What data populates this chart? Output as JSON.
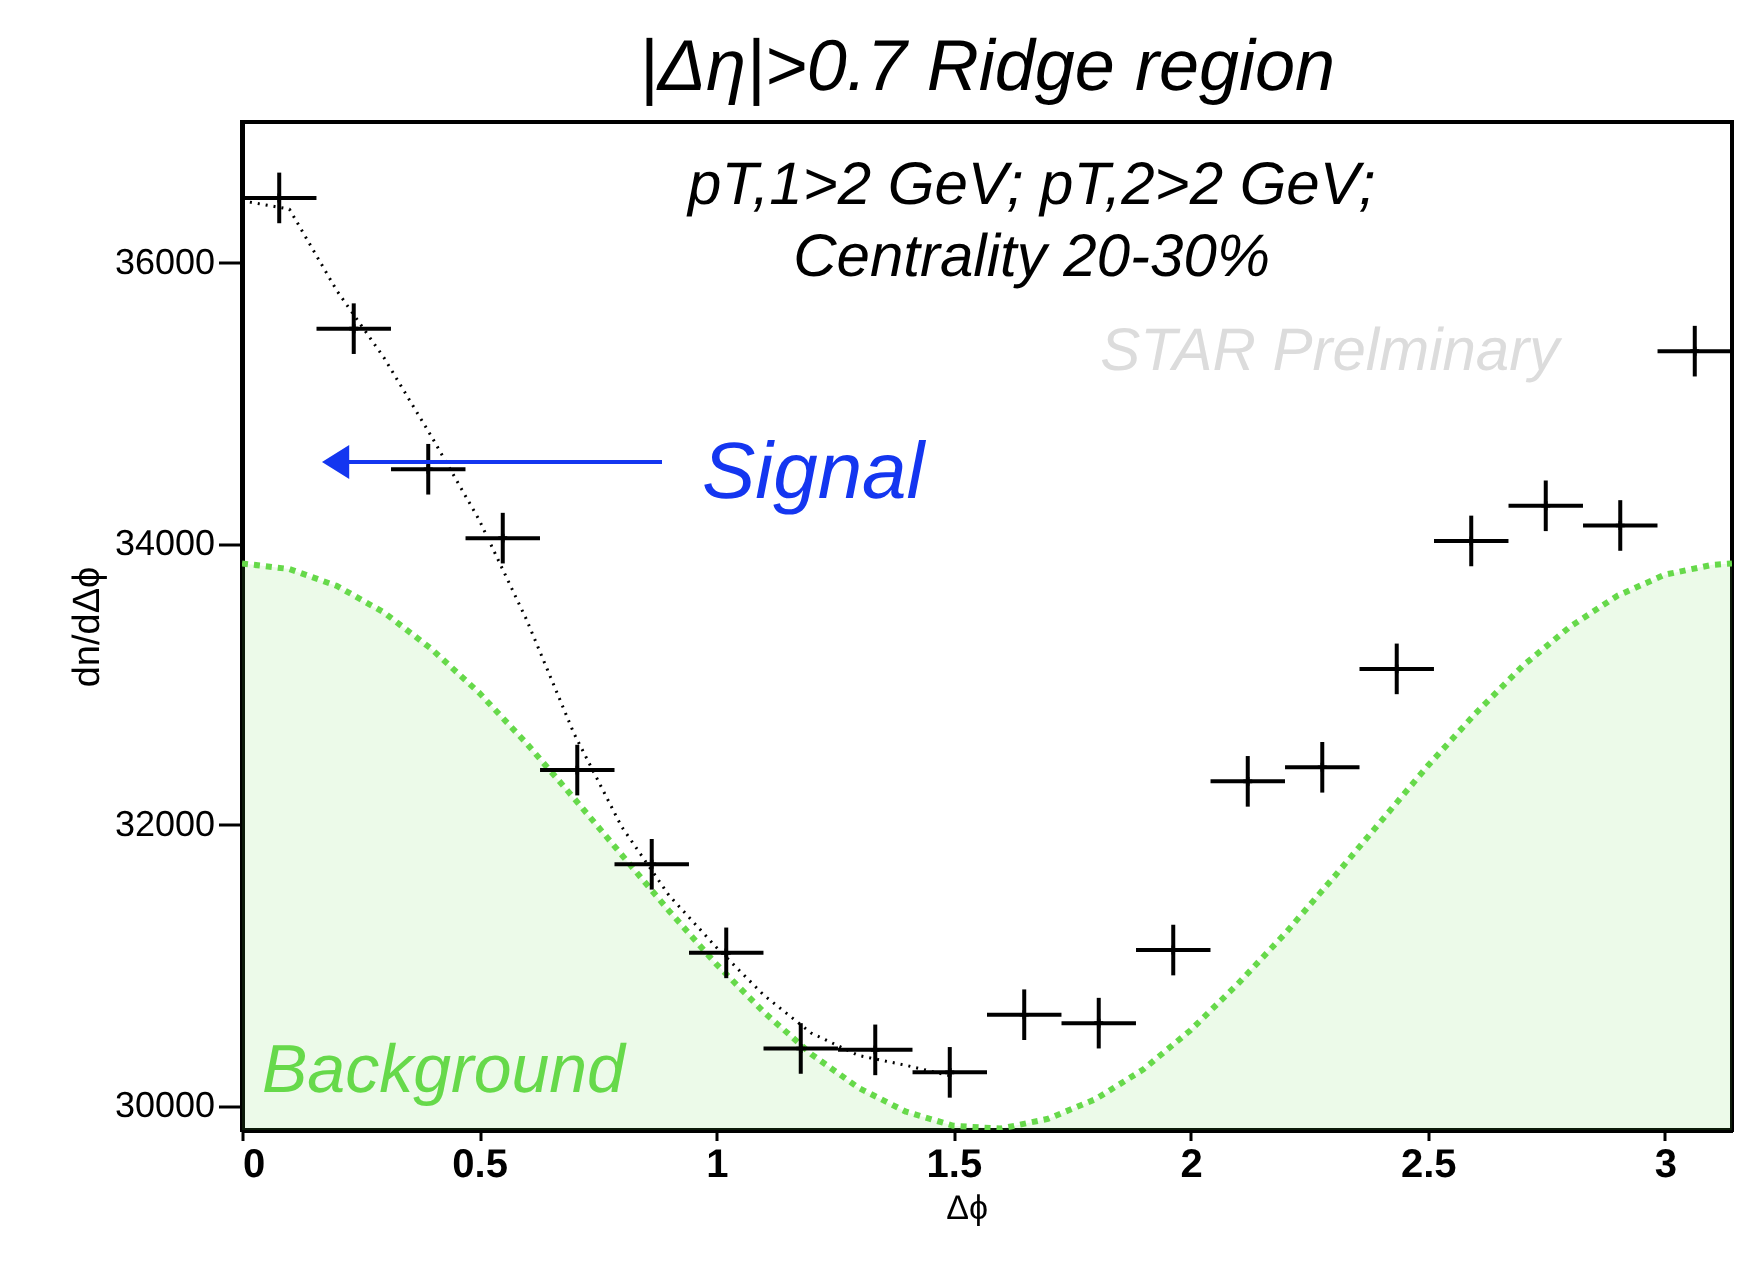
{
  "chart_data": {
    "type": "scatter",
    "title": "|Δη|>0.7 Ridge region",
    "xlabel": "Δϕ",
    "ylabel": "dn/dΔϕ",
    "xlim": [
      0,
      3.1416
    ],
    "xticks": [
      0,
      0.5,
      1,
      1.5,
      2,
      2.5,
      3
    ],
    "ylim": [
      29830,
      37000
    ],
    "yticks": [
      30000,
      32000,
      34000,
      36000
    ],
    "grid": false,
    "annotations": [
      "pT,1>2 GeV; pT,2>2 GeV;",
      "Centrality 20-30%",
      "STAR Prelminary",
      "Signal"
    ],
    "series": [
      {
        "type": "area",
        "name": "Background",
        "color": "#66d94a",
        "line_style": "dashed",
        "x": [
          0,
          0.1,
          0.2,
          0.3,
          0.4,
          0.5,
          0.6,
          0.7,
          0.8,
          0.9,
          1.0,
          1.1,
          1.2,
          1.3,
          1.4,
          1.5,
          1.6,
          1.7,
          1.8,
          1.9,
          2.0,
          2.1,
          2.2,
          2.3,
          2.4,
          2.5,
          2.6,
          2.7,
          2.8,
          2.9,
          3.0,
          3.1,
          3.1416
        ],
        "values": [
          33860,
          33820,
          33700,
          33510,
          33250,
          32940,
          32580,
          32190,
          31790,
          31390,
          31010,
          30670,
          30370,
          30130,
          29960,
          29860,
          29840,
          29910,
          30050,
          30260,
          30540,
          30870,
          31230,
          31620,
          32020,
          32420,
          32790,
          33130,
          33410,
          33630,
          33780,
          33850,
          33860
        ]
      },
      {
        "type": "line",
        "color": "#000000",
        "line_style": "dotted",
        "x": [
          0,
          0.1,
          0.2,
          0.3,
          0.4,
          0.5,
          0.6,
          0.7,
          0.8,
          0.9,
          1.0,
          1.1,
          1.2,
          1.3,
          1.4,
          1.5
        ],
        "values": [
          36440,
          36380,
          35800,
          35320,
          34760,
          34170,
          33460,
          32650,
          31990,
          31500,
          31130,
          30790,
          30520,
          30360,
          30290,
          30210
        ]
      },
      {
        "marker": "cross",
        "color": "#000000",
        "x": [
          0.0785,
          0.2356,
          0.3927,
          0.5498,
          0.7069,
          0.8639,
          1.021,
          1.1781,
          1.3352,
          1.4923,
          1.6493,
          1.8064,
          1.9635,
          2.1206,
          2.2777,
          2.4347,
          2.5918,
          2.7489,
          2.906,
          3.0631
        ],
        "values": [
          36460,
          35530,
          34530,
          34040,
          32390,
          31720,
          31090,
          30410,
          30400,
          30240,
          30650,
          30590,
          31110,
          32310,
          32410,
          33110,
          34020,
          34270,
          34130,
          35370
        ],
        "errors": [
          180,
          180,
          180,
          180,
          180,
          180,
          180,
          180,
          180,
          180,
          180,
          180,
          180,
          180,
          180,
          180,
          180,
          180,
          180,
          180
        ],
        "xerrors": [
          0.0785,
          0.0785,
          0.0785,
          0.0785,
          0.0785,
          0.0785,
          0.0785,
          0.0785,
          0.0785,
          0.0785,
          0.0785,
          0.0785,
          0.0785,
          0.0785,
          0.0785,
          0.0785,
          0.0785,
          0.0785,
          0.0785,
          0.0785
        ]
      }
    ]
  }
}
